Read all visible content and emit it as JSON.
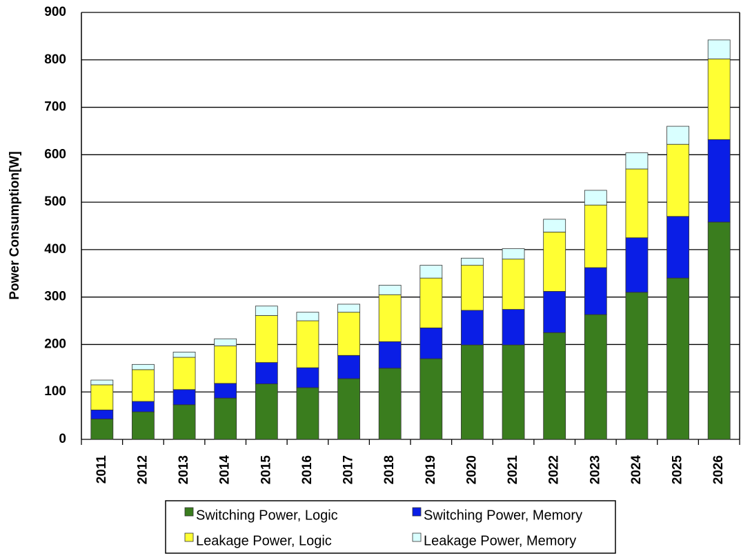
{
  "chart_data": {
    "type": "stacked_bar",
    "ylabel": "Power Consumption[W]",
    "categories": [
      "2011",
      "2012",
      "2013",
      "2014",
      "2015",
      "2016",
      "2017",
      "2018",
      "2019",
      "2020",
      "2021",
      "2022",
      "2023",
      "2024",
      "2025",
      "2026"
    ],
    "series": [
      {
        "name": "Switching Power, Logic",
        "color": "#3a7d1e",
        "values": [
          43,
          58,
          73,
          87,
          117,
          109,
          128,
          150,
          170,
          199,
          199,
          225,
          263,
          310,
          340,
          458
        ]
      },
      {
        "name": "Switching Power, Memory",
        "color": "#0a1ee6",
        "values": [
          19,
          22,
          32,
          31,
          45,
          42,
          49,
          56,
          65,
          73,
          75,
          87,
          99,
          115,
          130,
          174
        ]
      },
      {
        "name": "Leakage Power, Logic",
        "color": "#ffff33",
        "values": [
          53,
          67,
          68,
          79,
          99,
          99,
          91,
          99,
          105,
          95,
          106,
          125,
          132,
          145,
          152,
          170
        ]
      },
      {
        "name": "Leakage Power, Memory",
        "color": "#d9ffff",
        "values": [
          10,
          11,
          11,
          15,
          20,
          18,
          17,
          20,
          27,
          15,
          22,
          27,
          31,
          34,
          38,
          40
        ]
      }
    ],
    "ylim": [
      0,
      900
    ],
    "yticks": [
      0,
      100,
      200,
      300,
      400,
      500,
      600,
      700,
      800,
      900
    ],
    "grid": true,
    "legend": "bottom"
  }
}
